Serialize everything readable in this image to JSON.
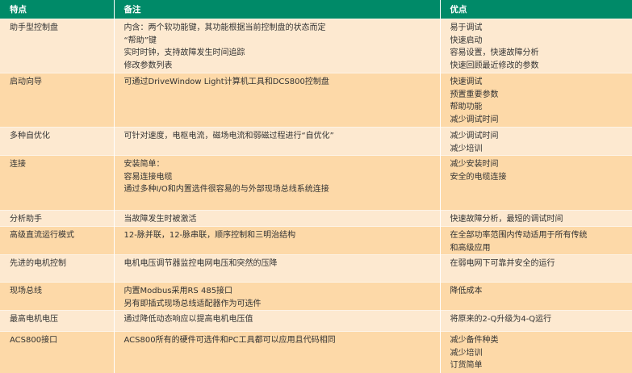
{
  "headers": [
    "特点",
    "备注",
    "优点"
  ],
  "rows": [
    {
      "feature": "助手型控制盘",
      "notes": [
        "内含：两个软功能键，其功能根据当前控制盘的状态而定",
        "“帮助”键",
        "实时时钟，支持故障发生时间追踪",
        "修改参数列表"
      ],
      "benefits": [
        "易于调试",
        "快速启动",
        "容易设置，快速故障分析",
        "快速回顾最近修改的参数"
      ]
    },
    {
      "feature": "启动向导",
      "notes": [
        "可通过DriveWindow Light计算机工具和DCS800控制盘"
      ],
      "benefits": [
        "快速调试",
        "预置重要参数",
        "帮助功能",
        "减少调试时间"
      ]
    },
    {
      "feature": "多种自优化",
      "notes": [
        "可针对速度，电枢电流，磁场电流和弱磁过程进行“自优化”"
      ],
      "benefits": [
        "减少调试时间",
        "减少培训"
      ]
    },
    {
      "feature": "连接",
      "notes": [
        "安装简单：",
        "容易连接电缆",
        "通过多种I/O和内置选件很容易的与外部现场总线系统连接"
      ],
      "benefits": [
        "减少安装时间",
        "安全的电缆连接"
      ]
    },
    {
      "feature": "分析助手",
      "notes": [
        "当故障发生时被激活"
      ],
      "benefits": [
        "快速故障分析，最短的调试时间"
      ]
    },
    {
      "feature": "高级直流运行模式",
      "notes": [
        "12-脉并联，12-脉串联，顺序控制和三明治结构"
      ],
      "benefits": [
        "在全部功率范围内传动适用于所有传统",
        "和高级应用"
      ]
    },
    {
      "feature": "先进的电机控制",
      "notes": [
        "电机电压调节器监控电网电压和突然的压降"
      ],
      "benefits": [
        "在弱电网下可靠并安全的运行"
      ]
    },
    {
      "feature": "现场总线",
      "notes": [
        "内置Modbus采用RS 485接口",
        "另有即插式现场总线适配器作为可选件"
      ],
      "benefits": [
        "降低成本"
      ]
    },
    {
      "feature": "最高电机电压",
      "notes": [
        "通过降低动态响应以提高电机电压值"
      ],
      "benefits": [
        "将原来的2-Q升级为4-Q运行"
      ]
    },
    {
      "feature": "ACS800接口",
      "notes": [
        "ACS800所有的硬件可选件和PC工具都可以应用且代码相同"
      ],
      "benefits": [
        "减少备件种类",
        "减少培训",
        "订货简单"
      ]
    }
  ],
  "colors": {
    "header": "#008a68",
    "row_light": "#fde9d0",
    "row_dark": "#fdd9a8"
  }
}
